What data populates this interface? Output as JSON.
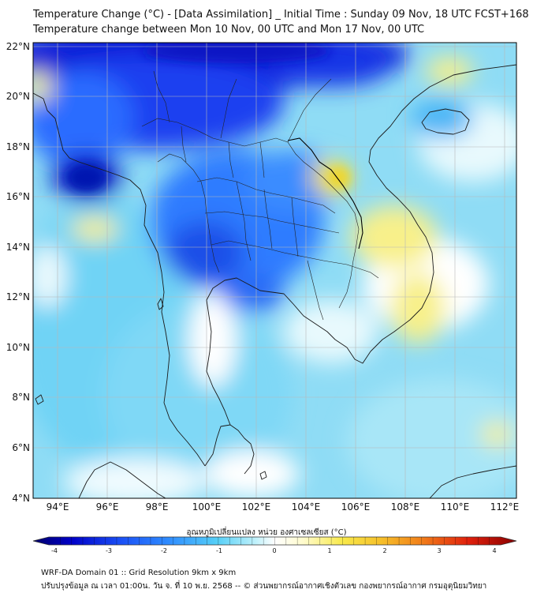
{
  "header": {
    "title_line1": "Temperature Change (°C) - [Data Assimilation] _ Initial Time : Sunday 09 Nov, 18 UTC FCST+168",
    "title_line2": "Temperature change between Mon 10 Nov, 00 UTC and Mon 17 Nov, 00 UTC"
  },
  "map": {
    "lat_labels": [
      "22°N",
      "20°N",
      "18°N",
      "16°N",
      "14°N",
      "12°N",
      "10°N",
      "8°N",
      "6°N",
      "4°N"
    ],
    "lat_values": [
      22,
      20,
      18,
      16,
      14,
      12,
      10,
      8,
      6,
      4
    ],
    "lon_labels": [
      "94°E",
      "96°E",
      "98°E",
      "100°E",
      "102°E",
      "104°E",
      "106°E",
      "108°E",
      "110°E",
      "112°E"
    ],
    "lon_values": [
      94,
      96,
      98,
      100,
      102,
      104,
      106,
      108,
      110,
      112
    ],
    "extent": {
      "lon_min": 93,
      "lon_max": 112.5,
      "lat_min": 4,
      "lat_max": 22.2
    },
    "field_description_colors": {
      "strong_cooling": "#0a1fd6",
      "moderate_cooling": "#2f7bff",
      "light_cooling": "#53c6f5",
      "slight_cooling": "#a8e6f7",
      "near_zero": "#ffffff",
      "slight_warming": "#f8f08a",
      "light_warming": "#f4e23c"
    }
  },
  "colorbar": {
    "title": "อุณหภูมิเปลี่ยนแปลง หน่วย องศาเซลเซียส (°C)",
    "tick_labels": [
      "-4",
      "-3",
      "-2",
      "-1",
      "0",
      "1",
      "2",
      "3",
      "4"
    ],
    "range": [
      -4,
      4
    ],
    "colors": [
      "#00006a",
      "#0000b4",
      "#0a2af0",
      "#1f6cff",
      "#35a8ff",
      "#5ad2f8",
      "#a5ecfb",
      "#e6fbff",
      "#ffffff",
      "#fffbd0",
      "#fff38a",
      "#f7dc3c",
      "#f7a823",
      "#f26a14",
      "#e62a0a",
      "#b40000",
      "#7a0000"
    ]
  },
  "footer": {
    "line1": "WRF-DA Domain 01 :: Grid Resolution 9km x 9km",
    "line2": "ปรับปรุงข้อมูล ณ เวลา 01:00น. วัน จ. ที่ 10 พ.ย. 2568 -- © ส่วนพยากรณ์อากาศเชิงตัวเลข กองพยากรณ์อากาศ กรมอุตุนิยมวิทยา"
  }
}
